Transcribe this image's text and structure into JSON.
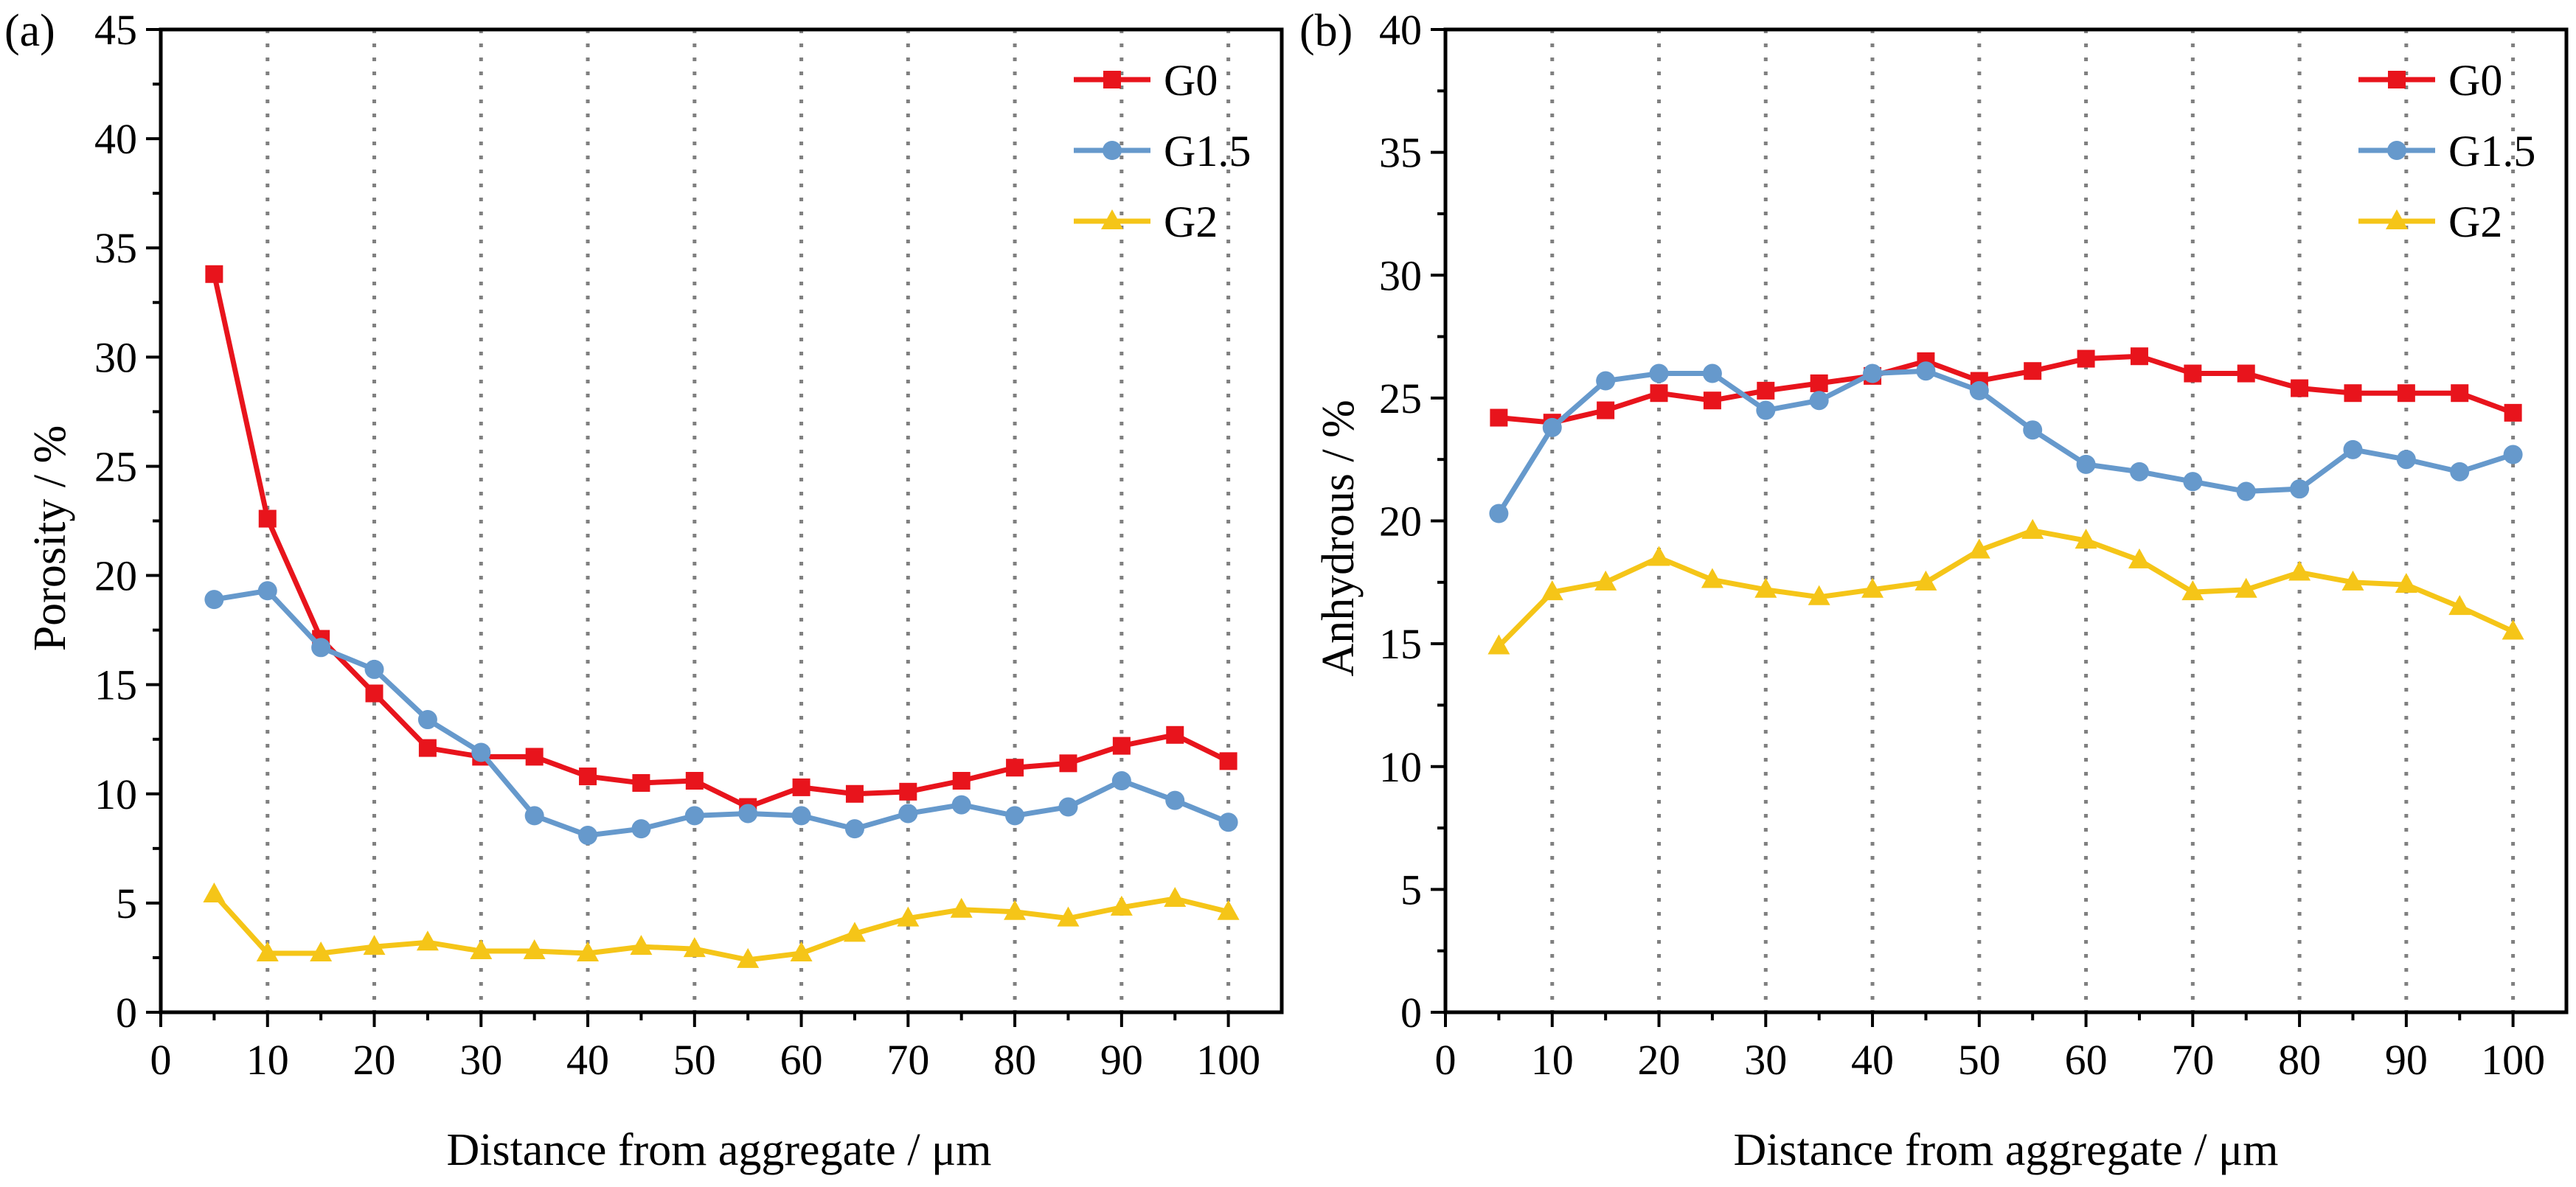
{
  "figure": {
    "colors": {
      "G0": "#e8141c",
      "G1.5": "#6699cc",
      "G2": "#f5c518",
      "axis": "#000000",
      "grid": "#808080"
    }
  },
  "chart_data": [
    {
      "type": "line",
      "panel_label": "(a)",
      "title": "",
      "xlabel": "Distance from aggregate / μm",
      "ylabel": "Porosity / %",
      "xlim": [
        0,
        105
      ],
      "ylim": [
        0,
        45
      ],
      "xticks": [
        0,
        10,
        20,
        30,
        40,
        50,
        60,
        70,
        80,
        90,
        100
      ],
      "yticks": [
        0,
        5,
        10,
        15,
        20,
        25,
        30,
        35,
        40,
        45
      ],
      "grid": "vertical dotted lines at every 10 μm",
      "legend_position": "top-right",
      "x": [
        5,
        10,
        15,
        20,
        25,
        30,
        35,
        40,
        45,
        50,
        55,
        60,
        65,
        70,
        75,
        80,
        85,
        90,
        95,
        100
      ],
      "series": [
        {
          "name": "G0",
          "marker": "square",
          "color": "#e8141c",
          "values": [
            33.8,
            22.6,
            17.1,
            14.6,
            12.1,
            11.7,
            11.7,
            10.8,
            10.5,
            10.6,
            9.4,
            10.3,
            10.0,
            10.1,
            10.6,
            11.2,
            11.4,
            12.2,
            12.7,
            11.5
          ]
        },
        {
          "name": "G1.5",
          "marker": "circle",
          "color": "#6699cc",
          "values": [
            18.9,
            19.3,
            16.7,
            15.7,
            13.4,
            11.9,
            9.0,
            8.1,
            8.4,
            9.0,
            9.1,
            9.0,
            8.4,
            9.1,
            9.5,
            9.0,
            9.4,
            10.6,
            9.7,
            8.7
          ]
        },
        {
          "name": "G2",
          "marker": "triangle",
          "color": "#f5c518",
          "values": [
            5.4,
            2.7,
            2.7,
            3.0,
            3.2,
            2.8,
            2.8,
            2.7,
            3.0,
            2.9,
            2.4,
            2.7,
            3.6,
            4.3,
            4.7,
            4.6,
            4.3,
            4.8,
            5.2,
            4.6
          ]
        }
      ]
    },
    {
      "type": "line",
      "panel_label": "(b)",
      "title": "",
      "xlabel": "Distance from aggregate / μm",
      "ylabel": "Anhydrous / %",
      "xlim": [
        0,
        105
      ],
      "ylim": [
        0,
        40
      ],
      "xticks": [
        0,
        10,
        20,
        30,
        40,
        50,
        60,
        70,
        80,
        90,
        100
      ],
      "yticks": [
        0,
        5,
        10,
        15,
        20,
        25,
        30,
        35,
        40
      ],
      "grid": "vertical dotted lines at every 10 μm",
      "legend_position": "top-right",
      "x": [
        5,
        10,
        15,
        20,
        25,
        30,
        35,
        40,
        45,
        50,
        55,
        60,
        65,
        70,
        75,
        80,
        85,
        90,
        95,
        100
      ],
      "series": [
        {
          "name": "G0",
          "marker": "square",
          "color": "#e8141c",
          "values": [
            24.2,
            24.0,
            24.5,
            25.2,
            24.9,
            25.3,
            25.6,
            25.9,
            26.5,
            25.7,
            26.1,
            26.6,
            26.7,
            26.0,
            26.0,
            25.4,
            25.2,
            25.2,
            25.2,
            24.4
          ]
        },
        {
          "name": "G1.5",
          "marker": "circle",
          "color": "#6699cc",
          "values": [
            20.3,
            23.8,
            25.7,
            26.0,
            26.0,
            24.5,
            24.9,
            26.0,
            26.1,
            25.3,
            23.7,
            22.3,
            22.0,
            21.6,
            21.2,
            21.3,
            22.9,
            22.5,
            22.0,
            22.7
          ]
        },
        {
          "name": "G2",
          "marker": "triangle",
          "color": "#f5c518",
          "values": [
            14.9,
            17.1,
            17.5,
            18.5,
            17.6,
            17.2,
            16.9,
            17.2,
            17.5,
            18.8,
            19.6,
            19.2,
            18.4,
            17.1,
            17.2,
            17.9,
            17.5,
            17.4,
            16.5,
            15.5
          ]
        }
      ]
    }
  ]
}
